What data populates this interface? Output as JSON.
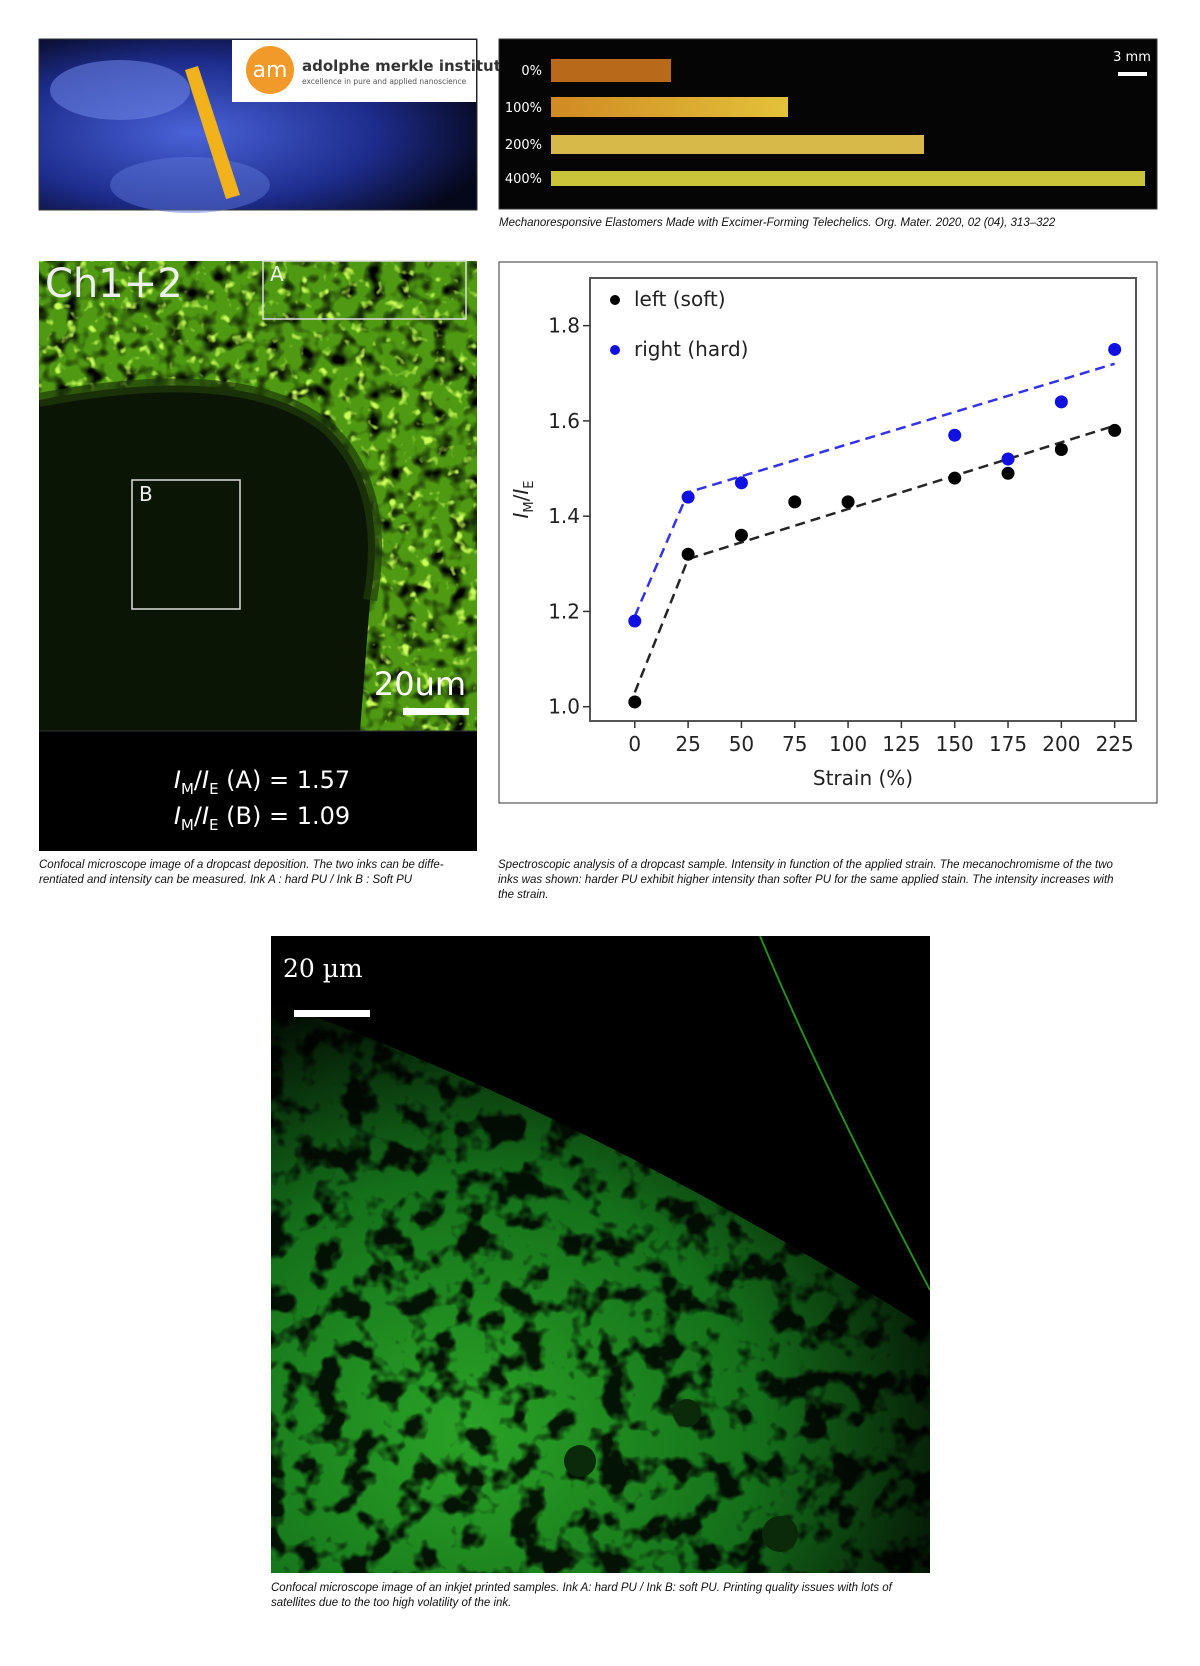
{
  "top_left": {
    "logo_name": "adolphe merkle institute",
    "logo_tagline": "excellence in pure and applied nanoscience"
  },
  "top_right": {
    "strain_labels": [
      "0%",
      "100%",
      "200%",
      "400%"
    ],
    "scale": "3 mm",
    "caption": "Mechanoresponsive Elastomers Made with Excimer-Forming Telechelics. Org. Mater. 2020, 02 (04), 313–322"
  },
  "middle_left": {
    "channel": "Ch1+2",
    "box_a": "A",
    "box_b": "B",
    "scale": "20um",
    "ratio_a": [
      "I",
      "M",
      "/",
      "I",
      "E",
      " (A) = 1.57"
    ],
    "ratio_b": [
      "I",
      "M",
      "/",
      "I",
      "E",
      " (B) = 1.09"
    ],
    "caption": [
      "Confocal microscope image of a dropcast deposition. The two inks can be diffe-",
      "rentiated and intensity can be measured. Ink A : hard PU / Ink B : Soft PU"
    ]
  },
  "middle_right": {
    "caption": [
      "Spectroscopic analysis of a dropcast sample. Intensity in function of the applied strain. The mecanochromisme of the two",
      "inks was shown: harder PU exhibit higher intensity than softer PU for the same applied stain. The intensity increases with",
      "the strain."
    ]
  },
  "bottom": {
    "scale": "20 µm",
    "caption": [
      "Confocal microscope image of an inkjet printed samples. Ink A: hard PU / Ink B: soft PU. Printing quality issues with lots of",
      "satellites due to the too high volatility of the ink."
    ]
  },
  "chart_data": {
    "type": "scatter",
    "x_label": "Strain (%)",
    "y_label": [
      "I",
      "M",
      "/",
      "I",
      "E"
    ],
    "xlim": [
      -21,
      235
    ],
    "ylim": [
      0.97,
      1.9
    ],
    "xticks": [
      0,
      25,
      50,
      75,
      100,
      125,
      150,
      175,
      200,
      225
    ],
    "yticks": [
      {
        "value": 1.0,
        "label": "1.0"
      },
      {
        "value": 1.2,
        "label": "1.2"
      },
      {
        "value": 1.4,
        "label": "1.4"
      },
      {
        "value": 1.6,
        "label": "1.6"
      },
      {
        "value": 1.8,
        "label": "1.8"
      }
    ],
    "series": [
      {
        "name": "left (soft)",
        "color": "#000000",
        "x": [
          0,
          25,
          50,
          75,
          100,
          150,
          175,
          200,
          225
        ],
        "values": [
          1.01,
          1.32,
          1.36,
          1.43,
          1.43,
          1.48,
          1.49,
          1.54,
          1.58
        ],
        "fit": {
          "x": [
            0,
            25,
            225
          ],
          "values": [
            1.03,
            1.31,
            1.59
          ]
        }
      },
      {
        "name": "right (hard)",
        "color": "#1010e0",
        "x": [
          0,
          25,
          50,
          150,
          175,
          200,
          225
        ],
        "values": [
          1.18,
          1.44,
          1.47,
          1.57,
          1.52,
          1.64,
          1.75
        ],
        "fit": {
          "x": [
            0,
            25,
            225
          ],
          "values": [
            1.19,
            1.45,
            1.72
          ]
        }
      }
    ]
  }
}
